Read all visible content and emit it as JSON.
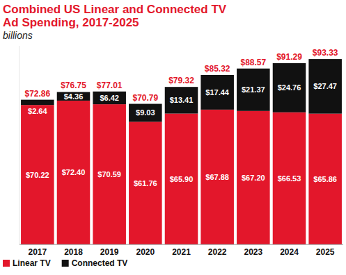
{
  "chart_data": {
    "type": "bar",
    "title": "Combined US Linear and Connected TV Ad Spending, 2017-2025",
    "subtitle": "billions",
    "categories": [
      "2017",
      "2018",
      "2019",
      "2020",
      "2021",
      "2022",
      "2023",
      "2024",
      "2025"
    ],
    "series": [
      {
        "name": "Linear TV",
        "color": "#e3172b",
        "values": [
          70.22,
          72.4,
          70.59,
          61.76,
          65.9,
          67.88,
          67.2,
          66.53,
          65.86
        ],
        "value_labels": [
          "$70.22",
          "$72.40",
          "$70.59",
          "$61.76",
          "$65.90",
          "$67.88",
          "$67.20",
          "$66.53",
          "$65.86"
        ]
      },
      {
        "name": "Connected TV",
        "color": "#111111",
        "values": [
          2.64,
          4.36,
          6.42,
          9.03,
          13.41,
          17.44,
          21.37,
          24.76,
          27.47
        ],
        "value_labels": [
          "$2.64",
          "$4.36",
          "$6.42",
          "$9.03",
          "$13.41",
          "$17.44",
          "$21.37",
          "$24.76",
          "$27.47"
        ]
      }
    ],
    "totals": [
      72.86,
      76.75,
      77.01,
      70.79,
      79.32,
      85.32,
      88.57,
      91.29,
      93.33
    ],
    "total_labels": [
      "$72.86",
      "$76.75",
      "$77.01",
      "$70.79",
      "$79.32",
      "$85.32",
      "$88.57",
      "$91.29",
      "$93.33"
    ],
    "ylim": [
      0,
      100
    ],
    "stacked": true,
    "data_labels": true,
    "tick_labels": "x",
    "legend": "bottom-left"
  }
}
